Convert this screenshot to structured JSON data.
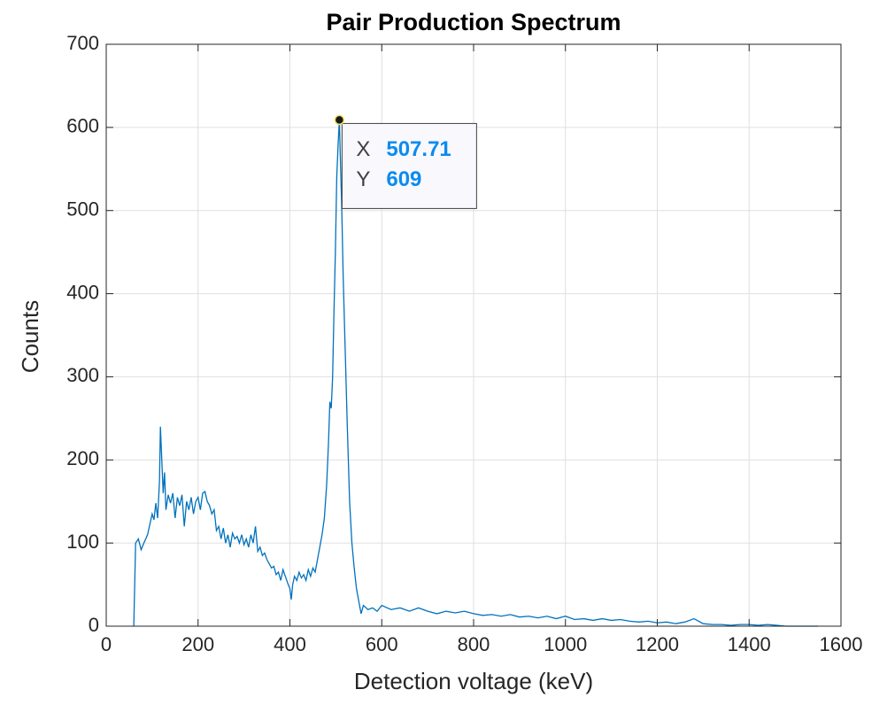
{
  "chart_data": {
    "type": "line",
    "title": "Pair Production Spectrum",
    "x_label": "Detection voltage (keV)",
    "y_label": "Counts",
    "color": "#0072bd",
    "grid": true,
    "xlim": [
      0,
      1600
    ],
    "xticks": [
      0,
      200,
      400,
      600,
      800,
      1000,
      1200,
      1400,
      1600
    ],
    "ylim": [
      0,
      700
    ],
    "yticks": [
      0,
      100,
      200,
      300,
      400,
      500,
      600,
      700
    ],
    "x": [
      60,
      64,
      70,
      76,
      82,
      90,
      96,
      100,
      104,
      108,
      112,
      116,
      118,
      121,
      124,
      127,
      130,
      135,
      140,
      145,
      150,
      155,
      160,
      165,
      170,
      175,
      180,
      185,
      190,
      195,
      200,
      205,
      210,
      215,
      220,
      225,
      230,
      235,
      240,
      245,
      250,
      255,
      260,
      265,
      270,
      275,
      280,
      285,
      290,
      295,
      300,
      305,
      310,
      315,
      320,
      325,
      330,
      335,
      340,
      345,
      350,
      355,
      360,
      365,
      370,
      375,
      380,
      385,
      390,
      395,
      400,
      403,
      406,
      410,
      415,
      420,
      425,
      430,
      435,
      440,
      445,
      450,
      455,
      460,
      465,
      470,
      475,
      480,
      484,
      487,
      490,
      493,
      496,
      499,
      502,
      505,
      507.71,
      510,
      513,
      516,
      520,
      525,
      530,
      535,
      540,
      545,
      550,
      555,
      560,
      570,
      580,
      590,
      600,
      620,
      640,
      660,
      680,
      700,
      720,
      740,
      760,
      780,
      800,
      820,
      840,
      860,
      880,
      900,
      920,
      940,
      960,
      980,
      1000,
      1020,
      1040,
      1060,
      1080,
      1100,
      1120,
      1140,
      1160,
      1180,
      1200,
      1220,
      1240,
      1260,
      1280,
      1300,
      1320,
      1340,
      1360,
      1380,
      1400,
      1420,
      1440,
      1460,
      1480,
      1500,
      1550
    ],
    "values": [
      0,
      100,
      105,
      92,
      100,
      110,
      125,
      135,
      128,
      148,
      130,
      175,
      240,
      200,
      160,
      185,
      140,
      158,
      148,
      160,
      130,
      155,
      145,
      158,
      120,
      150,
      140,
      155,
      135,
      150,
      155,
      140,
      160,
      162,
      150,
      145,
      135,
      140,
      115,
      120,
      105,
      118,
      100,
      110,
      95,
      112,
      105,
      108,
      100,
      110,
      98,
      105,
      95,
      110,
      100,
      120,
      90,
      95,
      85,
      88,
      80,
      75,
      70,
      72,
      62,
      65,
      55,
      68,
      60,
      52,
      45,
      32,
      50,
      60,
      55,
      65,
      58,
      62,
      55,
      68,
      60,
      70,
      65,
      80,
      95,
      110,
      130,
      170,
      220,
      270,
      262,
      300,
      380,
      450,
      540,
      580,
      609,
      560,
      500,
      420,
      340,
      240,
      150,
      100,
      70,
      45,
      30,
      15,
      25,
      20,
      22,
      18,
      25,
      20,
      22,
      18,
      22,
      18,
      15,
      18,
      16,
      18,
      15,
      13,
      14,
      12,
      14,
      11,
      12,
      10,
      12,
      9,
      12,
      8,
      9,
      7,
      9,
      7,
      8,
      6,
      5,
      6,
      4,
      5,
      3,
      5,
      9,
      3,
      2,
      2,
      1,
      2,
      2,
      1,
      2,
      1,
      0,
      0,
      0
    ],
    "datatip": {
      "x_label": "X",
      "x": 507.71,
      "y_label": "Y",
      "y": 609
    }
  }
}
